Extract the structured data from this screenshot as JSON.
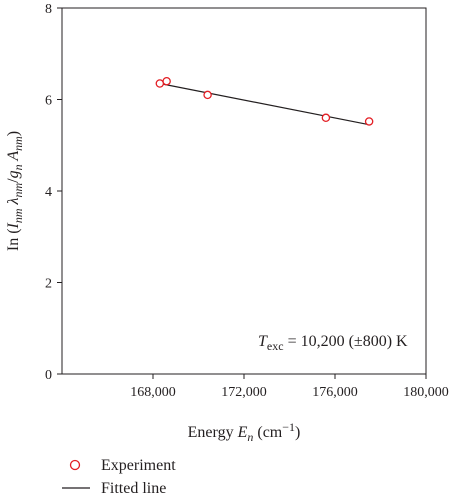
{
  "chart_data": {
    "type": "scatter",
    "xlim": [
      164000,
      180000
    ],
    "ylim": [
      0,
      8
    ],
    "x_ticks": [
      168000,
      172000,
      176000,
      180000
    ],
    "x_tick_labels": [
      "168,000",
      "172,000",
      "176,000",
      "180,000"
    ],
    "y_ticks": [
      0,
      2,
      4,
      6,
      8
    ],
    "y_tick_labels": [
      "0",
      "2",
      "4",
      "6",
      "8"
    ],
    "xlabel": {
      "prefix": "Energy ",
      "symbol": "E",
      "sub": "n",
      "unit_open": " (cm",
      "unit_sup": "−1",
      "unit_close": ")"
    },
    "ylabel": {
      "prefix": "In (",
      "I": "I",
      "I_sub": "nm",
      "lambda": " λ",
      "lambda_sub": "nm",
      "slash": "/",
      "g": "g",
      "g_sub": "n",
      "A": " A",
      "A_sub": "nm",
      "close": ")"
    },
    "annotation": {
      "T": "T",
      "T_sub": "exc",
      "text": " = 10,200 (±800) K"
    },
    "grid": false,
    "series": [
      {
        "name": "Experiment",
        "kind": "markers",
        "marker": "open-circle",
        "color": "#e31e24",
        "x": [
          168300,
          168600,
          170400,
          175600,
          177500
        ],
        "y": [
          6.35,
          6.4,
          6.1,
          5.6,
          5.52
        ]
      },
      {
        "name": "Fitted line",
        "kind": "line",
        "color": "#231f20",
        "x": [
          168300,
          177500
        ],
        "y": [
          6.35,
          5.45
        ]
      }
    ],
    "legend": {
      "position": "bottom-left",
      "entries": [
        "Experiment",
        "Fitted line"
      ]
    }
  }
}
